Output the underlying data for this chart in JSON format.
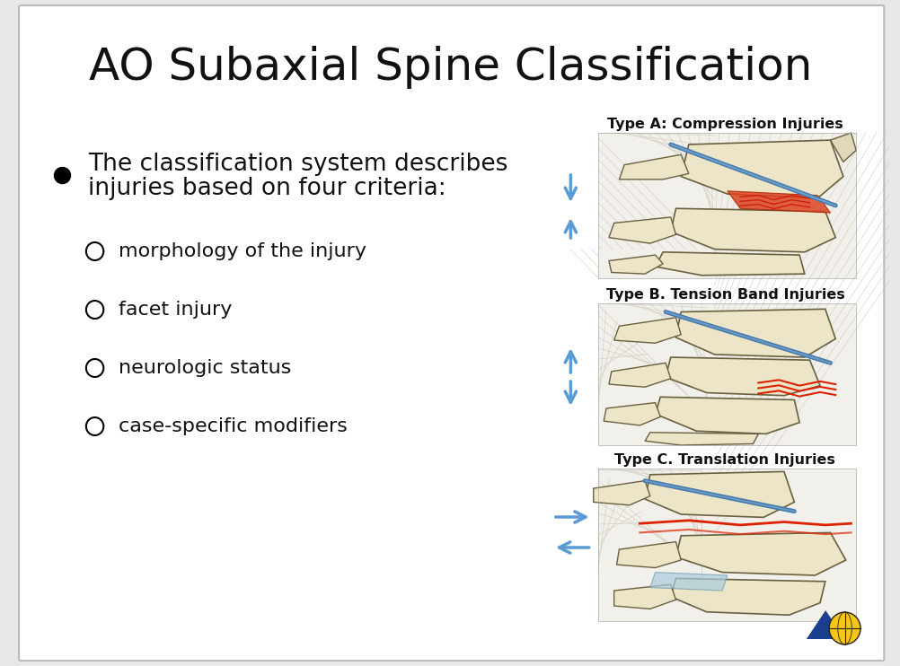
{
  "title": "AO Subaxial Spine Classification",
  "title_fontsize": 36,
  "background_color": "#e8e8e8",
  "slide_bg": "#ffffff",
  "main_bullet_line1": "The classification system describes",
  "main_bullet_line2": "injuries based on four criteria:",
  "sub_bullets": [
    "morphology of the injury",
    "facet injury",
    "neurologic status",
    "case-specific modifiers"
  ],
  "type_labels": [
    "Type A: Compression Injuries",
    "Type B. Tension Band Injuries",
    "Type C. Translation Injuries"
  ],
  "arrow_color": "#5b9bd5",
  "text_color": "#111111",
  "label_fontsize": 11.5,
  "bullet_fontsize": 19,
  "sub_bullet_fontsize": 16,
  "bone_color": "#e8dfc0",
  "bone_edge": "#8a8060",
  "muscle_bg": "#d8d4c8",
  "muscle_line": "#b8b4a8"
}
